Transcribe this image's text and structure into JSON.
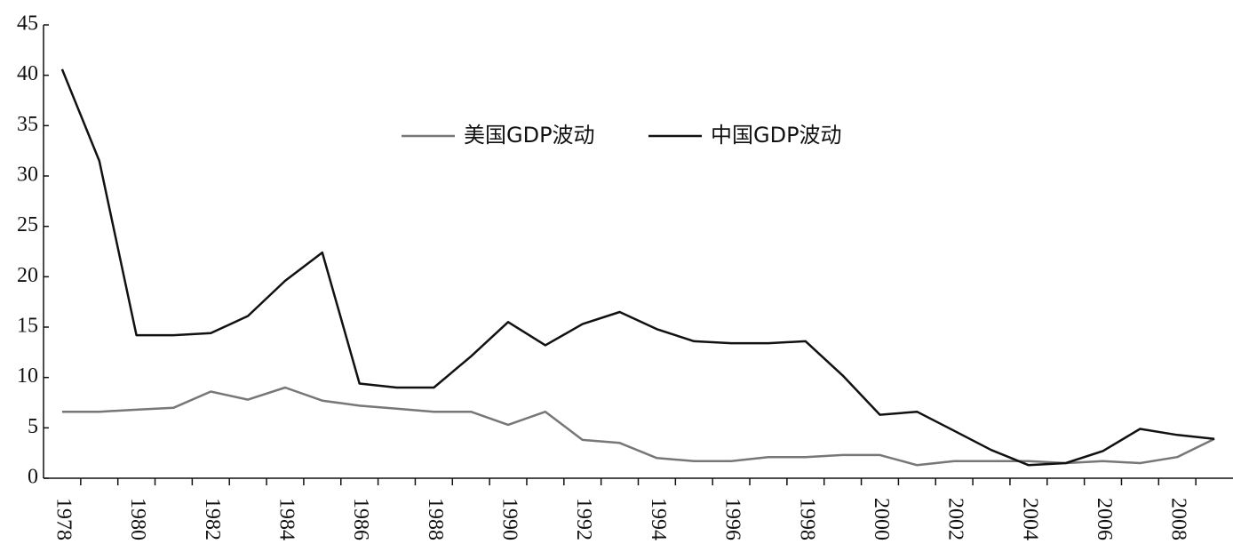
{
  "chart_data": {
    "type": "line",
    "categories": [
      "1978",
      null,
      "1980",
      null,
      "1982",
      null,
      "1984",
      null,
      "1986",
      null,
      "1988",
      null,
      "1990",
      null,
      "1992",
      null,
      "1994",
      null,
      "1996",
      null,
      "1998",
      null,
      "2000",
      null,
      "2002",
      null,
      "2004",
      null,
      "2006",
      null,
      "2008",
      null
    ],
    "series": [
      {
        "name": "美国GDP波动",
        "color": "#777777",
        "values": [
          6.6,
          6.6,
          6.8,
          7.0,
          8.6,
          7.8,
          9.0,
          7.7,
          7.2,
          6.9,
          6.6,
          6.6,
          5.3,
          6.6,
          3.8,
          3.5,
          2.0,
          1.7,
          1.7,
          2.1,
          2.1,
          2.3,
          2.3,
          1.3,
          1.7,
          1.7,
          1.7,
          1.5,
          1.7,
          1.5,
          2.1,
          3.9
        ]
      },
      {
        "name": "中国GDP波动",
        "color": "#111111",
        "values": [
          40.6,
          31.5,
          14.2,
          14.2,
          14.4,
          16.1,
          19.6,
          22.4,
          9.4,
          9.0,
          9.0,
          12.1,
          15.5,
          13.2,
          15.3,
          16.5,
          14.8,
          13.6,
          13.4,
          13.4,
          13.6,
          10.2,
          6.3,
          6.6,
          4.7,
          2.8,
          1.3,
          1.5,
          2.7,
          4.9,
          4.3,
          3.9
        ]
      }
    ],
    "ylim": [
      0,
      45
    ],
    "yticks": [
      0,
      5,
      10,
      15,
      20,
      25,
      30,
      35,
      40,
      45
    ],
    "grid": false,
    "legend": "top"
  }
}
